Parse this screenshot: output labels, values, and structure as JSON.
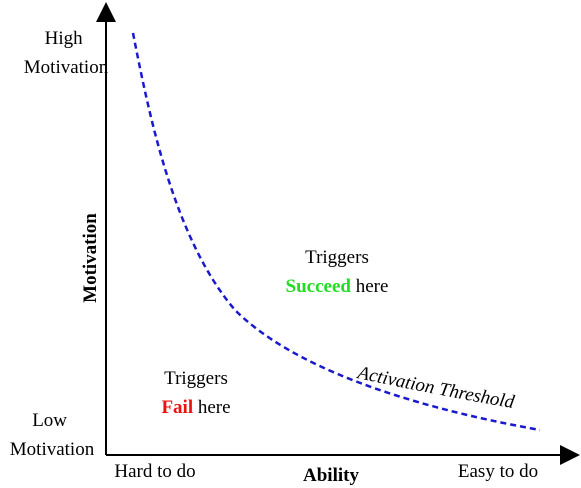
{
  "axes": {
    "y_label": "Motivation",
    "y_top_label": [
      "High",
      "Motivation"
    ],
    "y_bottom_label": [
      "Low",
      "Motivation"
    ],
    "x_label": "Ability",
    "x_left_label": "Hard to do",
    "x_right_label": "Easy to do"
  },
  "regions": {
    "above": {
      "line1": "Triggers",
      "highlight": "Succeed",
      "rest": " here"
    },
    "below": {
      "line1": "Triggers",
      "highlight": "Fail",
      "rest": " here"
    }
  },
  "curve": {
    "label": "Activation Threshold",
    "style": "dashed"
  },
  "colors": {
    "axis": "#000000",
    "curve": "#1a1acc",
    "succeed": "#22dd22",
    "fail": "#ee1111"
  }
}
